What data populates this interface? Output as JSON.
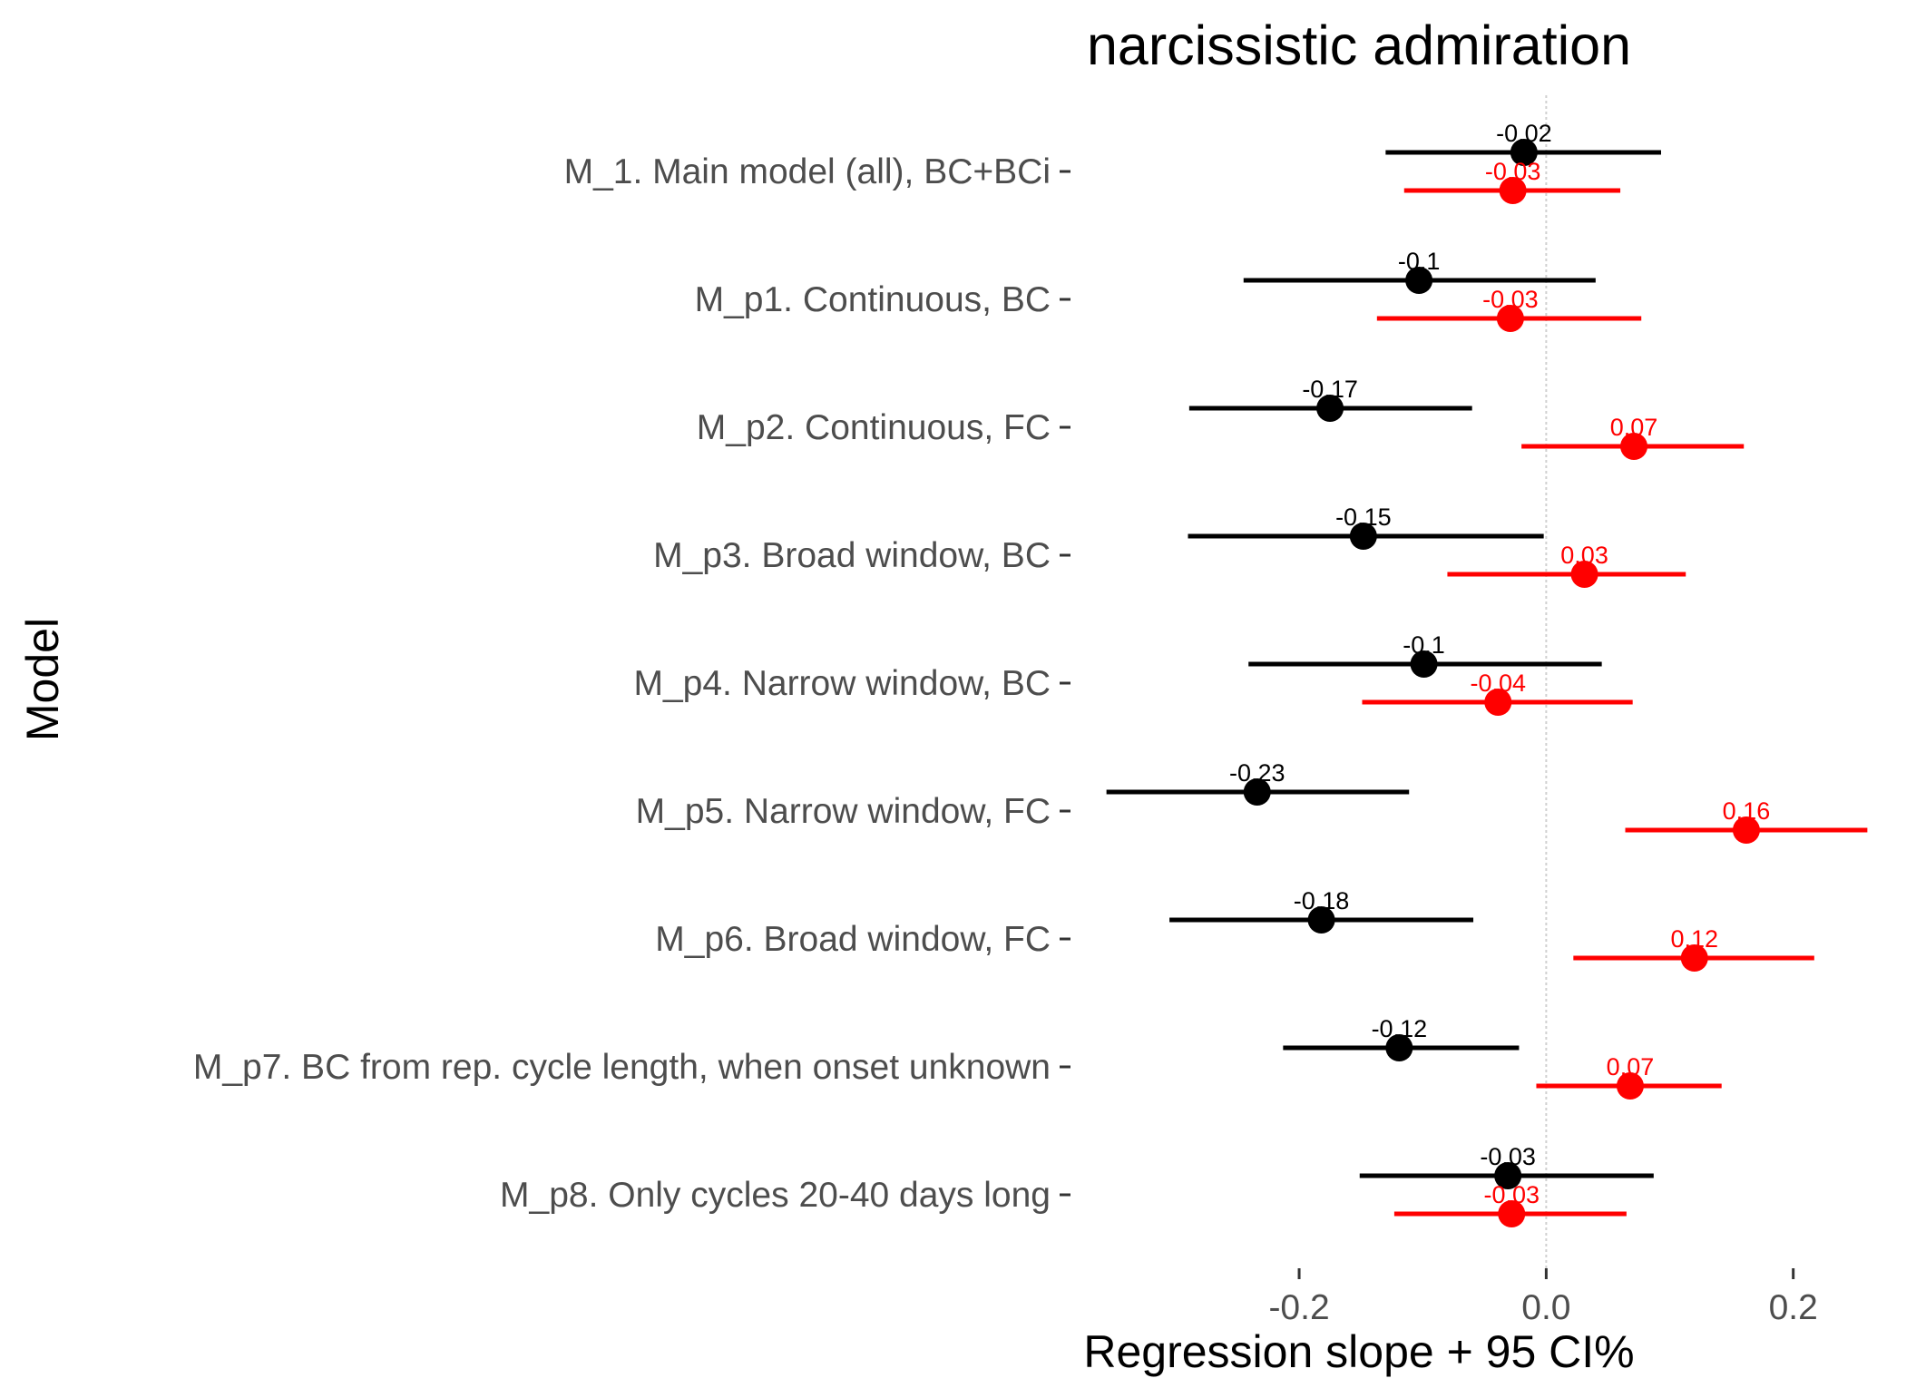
{
  "chart_data": {
    "type": "forest",
    "title": "narcissistic admiration",
    "xlabel": "Regression slope + 95 CI%",
    "ylabel": "Model",
    "xlim": [
      -0.355,
      0.27
    ],
    "xticks": [
      -0.2,
      0.0,
      0.2
    ],
    "xtick_labels": [
      "-0.2",
      "0.0",
      "0.2"
    ],
    "reference_line": 0,
    "grid": false,
    "legend": "none",
    "categories": [
      "M_1. Main model (all), BC+BCi",
      "M_p1. Continuous, BC",
      "M_p2. Continuous, FC",
      "M_p3. Broad window, BC",
      "M_p4. Narrow window, BC",
      "M_p5. Narrow window, FC",
      "M_p6. Broad window, FC",
      "M_p7. BC from rep. cycle length, when onset unknown",
      "M_p8. Only cycles 20-40 days long"
    ],
    "series": [
      {
        "color": "#000000",
        "estimates": [
          -0.018,
          -0.103,
          -0.175,
          -0.148,
          -0.099,
          -0.234,
          -0.182,
          -0.119,
          -0.031
        ],
        "lower": [
          -0.13,
          -0.245,
          -0.289,
          -0.29,
          -0.241,
          -0.356,
          -0.305,
          -0.213,
          -0.151
        ],
        "upper": [
          0.093,
          0.04,
          -0.06,
          -0.002,
          0.045,
          -0.111,
          -0.059,
          -0.022,
          0.087
        ],
        "labels": [
          "-0.02",
          "-0.1",
          "-0.17",
          "-0.15",
          "-0.1",
          "-0.23",
          "-0.18",
          "-0.12",
          "-0.03"
        ]
      },
      {
        "color": "#ff0000",
        "estimates": [
          -0.027,
          -0.029,
          0.071,
          0.031,
          -0.039,
          0.162,
          0.12,
          0.068,
          -0.028
        ],
        "lower": [
          -0.115,
          -0.137,
          -0.02,
          -0.08,
          -0.149,
          0.064,
          0.022,
          -0.008,
          -0.123
        ],
        "upper": [
          0.06,
          0.077,
          0.16,
          0.113,
          0.07,
          0.26,
          0.217,
          0.142,
          0.065
        ],
        "labels": [
          "-0.03",
          "-0.03",
          "0.07",
          "0.03",
          "-0.04",
          "0.16",
          "0.12",
          "0.07",
          "-0.03"
        ]
      }
    ]
  }
}
